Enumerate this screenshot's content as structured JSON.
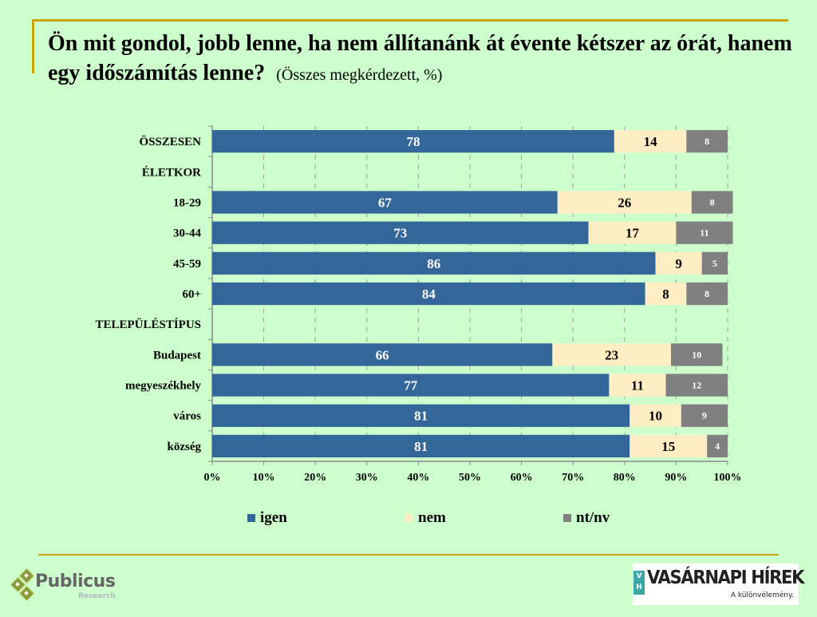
{
  "header": {
    "title": "Ön mit gondol, jobb lenne, ha nem állítanánk át évente kétszer az órát, hanem egy időszámítás lenne?",
    "subtitle": "(Összes megkérdezett, %)"
  },
  "chart_data": {
    "type": "bar",
    "orientation": "horizontal",
    "stacked": true,
    "title": "Ön mit gondol, jobb lenne, ha nem állítanánk át évente kétszer az órát, hanem egy időszámítás lenne?",
    "subtitle": "(Összes megkérdezett, %)",
    "categories": [
      "ÖSSZESEN",
      "ÉLETKOR",
      "18-29",
      "30-44",
      "45-59",
      "60+",
      "TELEPÜLÉSTÍPUS",
      "Budapest",
      "megyeszékhely",
      "város",
      "község"
    ],
    "series": [
      {
        "name": "igen",
        "color": "#336699",
        "values": [
          78,
          null,
          67,
          73,
          86,
          84,
          null,
          66,
          77,
          81,
          81
        ]
      },
      {
        "name": "nem",
        "color": "#ffeec4",
        "values": [
          14,
          null,
          26,
          17,
          9,
          8,
          null,
          23,
          11,
          10,
          15
        ]
      },
      {
        "name": "nt/nv",
        "color": "#808080",
        "values": [
          8,
          null,
          8,
          11,
          5,
          8,
          null,
          10,
          12,
          9,
          4
        ]
      }
    ],
    "xlim": [
      0,
      100
    ],
    "x_ticks": [
      "0%",
      "10%",
      "20%",
      "30%",
      "40%",
      "50%",
      "60%",
      "70%",
      "80%",
      "90%",
      "100%"
    ],
    "xlabel": "",
    "ylabel": "",
    "grid": "vertical dashed",
    "legend_position": "bottom"
  },
  "legend": [
    {
      "label": "igen",
      "color": "#336699"
    },
    {
      "label": "nem",
      "color": "#ffeec4"
    },
    {
      "label": "nt/nv",
      "color": "#808080"
    }
  ],
  "footer": {
    "left_logo": {
      "name": "Publicus",
      "sub": "Research"
    },
    "right_logo": {
      "badge_top": "V",
      "badge_bottom": "H",
      "name": "VASÁRNAPI HÍREK",
      "tagline": "A különvélemény."
    }
  }
}
